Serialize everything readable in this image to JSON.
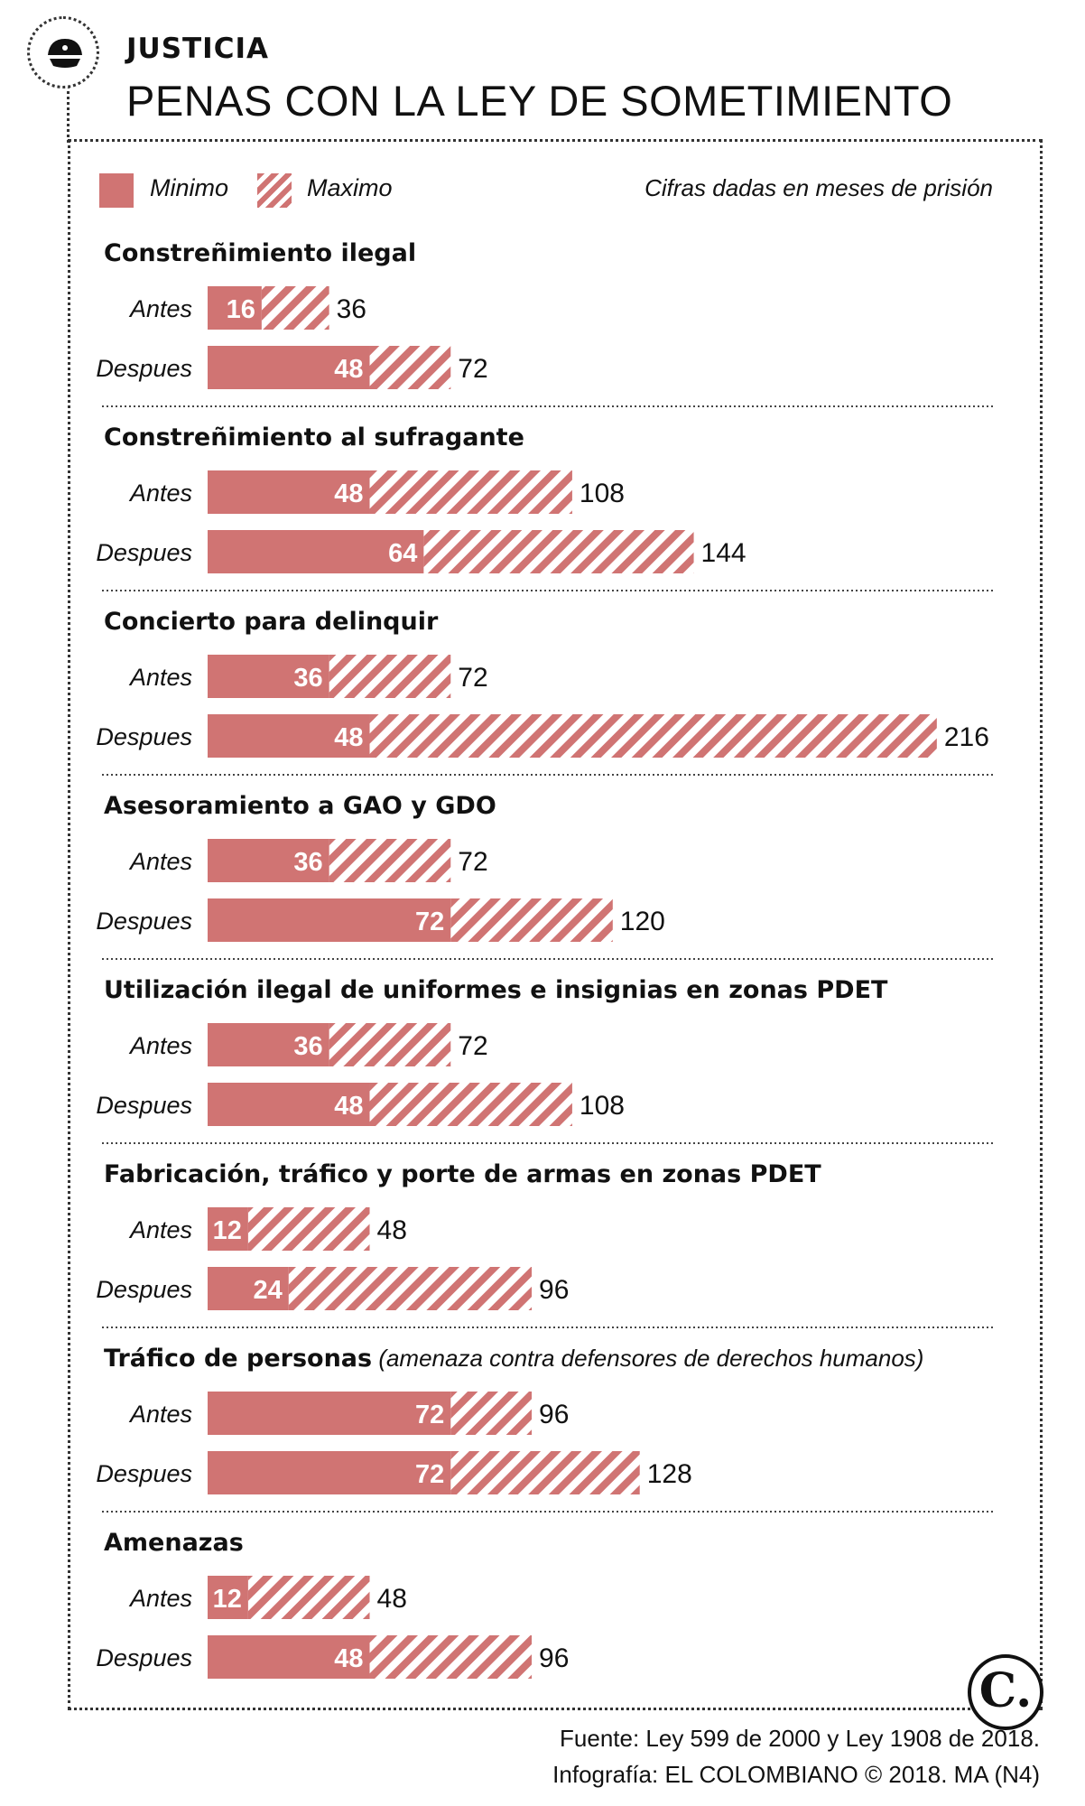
{
  "header": {
    "section": "JUSTICIA",
    "title": "PENAS CON LA LEY DE SOMETIMIENTO",
    "icon": "police-cap-icon"
  },
  "legend": {
    "min_label": "Minimo",
    "max_label": "Maximo",
    "unit_note": "Cifras dadas en meses de prisión"
  },
  "colors": {
    "bar": "#d07473",
    "hatch_bg": "#ffffff",
    "divider": "#444444"
  },
  "chart_data": {
    "type": "bar",
    "orientation": "horizontal",
    "unit": "meses de prisión",
    "legend_placement": "top-left",
    "series": [
      {
        "name": "Minimo",
        "style": "solid"
      },
      {
        "name": "Maximo",
        "style": "hatched"
      }
    ],
    "groups": [
      {
        "title": "Constreñimiento ilegal",
        "note": "",
        "rows": [
          {
            "label": "Antes",
            "min": 16,
            "max": 36
          },
          {
            "label": "Despues",
            "min": 48,
            "max": 72
          }
        ]
      },
      {
        "title": "Constreñimiento al sufragante",
        "note": "",
        "rows": [
          {
            "label": "Antes",
            "min": 48,
            "max": 108
          },
          {
            "label": "Despues",
            "min": 64,
            "max": 144
          }
        ]
      },
      {
        "title": "Concierto para delinquir",
        "note": "",
        "rows": [
          {
            "label": "Antes",
            "min": 36,
            "max": 72
          },
          {
            "label": "Despues",
            "min": 48,
            "max": 216
          }
        ]
      },
      {
        "title": "Asesoramiento a GAO y GDO",
        "note": "",
        "rows": [
          {
            "label": "Antes",
            "min": 36,
            "max": 72
          },
          {
            "label": "Despues",
            "min": 72,
            "max": 120
          }
        ]
      },
      {
        "title": "Utilización ilegal de uniformes e insignias en zonas PDET",
        "note": "",
        "rows": [
          {
            "label": "Antes",
            "min": 36,
            "max": 72
          },
          {
            "label": "Despues",
            "min": 48,
            "max": 108
          }
        ]
      },
      {
        "title": "Fabricación, tráfico y porte de armas en zonas PDET",
        "note": "",
        "rows": [
          {
            "label": "Antes",
            "min": 12,
            "max": 48
          },
          {
            "label": "Despues",
            "min": 24,
            "max": 96
          }
        ]
      },
      {
        "title": "Tráfico de personas",
        "note": "(amenaza contra defensores de derechos humanos)",
        "rows": [
          {
            "label": "Antes",
            "min": 72,
            "max": 96
          },
          {
            "label": "Despues",
            "min": 72,
            "max": 128
          }
        ]
      },
      {
        "title": "Amenazas",
        "note": "",
        "rows": [
          {
            "label": "Antes",
            "min": 12,
            "max": 48
          },
          {
            "label": "Despues",
            "min": 48,
            "max": 96
          }
        ]
      }
    ]
  },
  "footer": {
    "source": "Fuente: Ley 599 de 2000 y Ley 1908 de 2018.",
    "credit": "Infografía: EL COLOMBIANO © 2018. MA (N4)",
    "logo_text": "C."
  }
}
